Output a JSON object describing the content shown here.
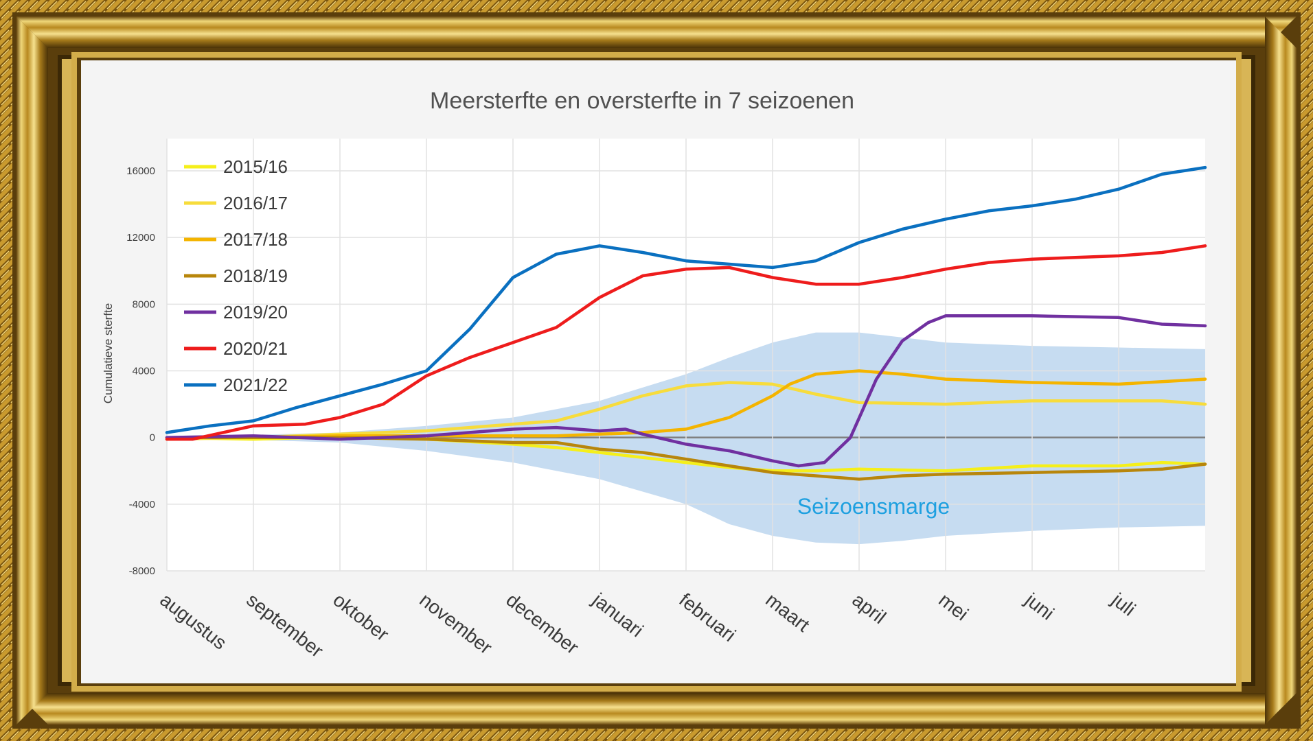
{
  "chart_data": {
    "type": "line",
    "title": "Meersterfte en oversterfte in 7 seizoenen",
    "ylabel": "Cumulatieve sterfte",
    "xlabel": "",
    "ylim": [
      -8000,
      18000
    ],
    "yticks": [
      16000,
      12000,
      8000,
      4000,
      0,
      -4000,
      -8000
    ],
    "ytick_labels": [
      "16000",
      "12000",
      "8000",
      "4000",
      "0",
      "-4000",
      "-8000"
    ],
    "months": [
      "augustus",
      "september",
      "oktober",
      "november",
      "december",
      "januari",
      "februari",
      "maart",
      "april",
      "mei",
      "juni",
      "juli"
    ],
    "x_range": [
      0,
      12
    ],
    "annotation": "Seizoensmarge",
    "band": {
      "name": "Seizoensmarge",
      "color": "#bcd6ee",
      "x": [
        0,
        1,
        2,
        3,
        4,
        5,
        6,
        6.5,
        7,
        7.5,
        8,
        8.5,
        9,
        10,
        11,
        12
      ],
      "upper": [
        100,
        150,
        300,
        700,
        1200,
        2200,
        3800,
        4800,
        5700,
        6300,
        6300,
        6000,
        5700,
        5500,
        5400,
        5300
      ],
      "lower": [
        -100,
        -150,
        -300,
        -800,
        -1500,
        -2500,
        -4000,
        -5200,
        -5900,
        -6300,
        -6400,
        -6200,
        -5900,
        -5600,
        -5400,
        -5300
      ]
    },
    "series": [
      {
        "name": "2015/16",
        "color": "#f5ef1a",
        "x": [
          0,
          1,
          2,
          3,
          4,
          4.5,
          5,
          5.5,
          6,
          6.5,
          7,
          7.5,
          8,
          9,
          10,
          11,
          11.5,
          12
        ],
        "values": [
          0,
          -100,
          50,
          -100,
          -400,
          -600,
          -900,
          -1200,
          -1500,
          -1800,
          -2000,
          -2000,
          -1900,
          -2000,
          -1700,
          -1700,
          -1500,
          -1600
        ]
      },
      {
        "name": "2016/17",
        "color": "#f7dc3c",
        "x": [
          0,
          1,
          2,
          3,
          4,
          4.5,
          5,
          5.5,
          6,
          6.5,
          7,
          7.5,
          8,
          9,
          10,
          11,
          11.5,
          12
        ],
        "values": [
          -100,
          0,
          200,
          400,
          800,
          1000,
          1700,
          2500,
          3100,
          3300,
          3200,
          2600,
          2100,
          2000,
          2200,
          2200,
          2200,
          2000
        ]
      },
      {
        "name": "2017/18",
        "color": "#f4b400",
        "x": [
          0,
          1,
          2,
          3,
          4,
          4.5,
          5,
          5.5,
          6,
          6.5,
          7,
          7.2,
          7.5,
          8,
          8.5,
          9,
          10,
          11,
          12
        ],
        "values": [
          0,
          0,
          100,
          100,
          100,
          100,
          200,
          300,
          500,
          1200,
          2500,
          3200,
          3800,
          4000,
          3800,
          3500,
          3300,
          3200,
          3500
        ]
      },
      {
        "name": "2018/19",
        "color": "#b8860b",
        "x": [
          0,
          1,
          2,
          3,
          4,
          4.5,
          5,
          5.5,
          6,
          6.5,
          7,
          7.5,
          8,
          8.5,
          9,
          10,
          11,
          11.5,
          12
        ],
        "values": [
          0,
          0,
          0,
          -100,
          -300,
          -300,
          -700,
          -900,
          -1300,
          -1700,
          -2100,
          -2300,
          -2500,
          -2300,
          -2200,
          -2100,
          -2000,
          -1900,
          -1600
        ]
      },
      {
        "name": "2019/20",
        "color": "#7030a0",
        "x": [
          0,
          1,
          2,
          3,
          4,
          4.5,
          5,
          5.3,
          5.5,
          6,
          6.5,
          7,
          7.3,
          7.6,
          7.9,
          8.2,
          8.5,
          8.8,
          9,
          10,
          11,
          11.5,
          12
        ],
        "values": [
          0,
          100,
          -100,
          100,
          500,
          600,
          400,
          500,
          200,
          -400,
          -800,
          -1400,
          -1700,
          -1500,
          0,
          3500,
          5800,
          6900,
          7300,
          7300,
          7200,
          6800,
          6700
        ]
      },
      {
        "name": "2020/21",
        "color": "#ee1c1c",
        "x": [
          0,
          0.3,
          1,
          1.6,
          2,
          2.5,
          3,
          3.5,
          4,
          4.5,
          5,
          5.5,
          6,
          6.5,
          7,
          7.5,
          8,
          8.5,
          9,
          9.5,
          10,
          10.5,
          11,
          11.5,
          12
        ],
        "values": [
          -100,
          -100,
          700,
          800,
          1200,
          2000,
          3700,
          4800,
          5700,
          6600,
          8400,
          9700,
          10100,
          10200,
          9600,
          9200,
          9200,
          9600,
          10100,
          10500,
          10700,
          10800,
          10900,
          11100,
          11500
        ]
      },
      {
        "name": "2021/22",
        "color": "#0a70c0",
        "x": [
          0,
          0.5,
          1,
          1.5,
          2,
          2.5,
          3,
          3.5,
          4,
          4.5,
          5,
          5.5,
          6,
          6.5,
          7,
          7.5,
          8,
          8.5,
          9,
          9.5,
          10,
          10.5,
          11,
          11.5,
          12
        ],
        "values": [
          300,
          700,
          1000,
          1800,
          2500,
          3200,
          4000,
          6500,
          9600,
          11000,
          11500,
          11100,
          10600,
          10400,
          10200,
          10600,
          11700,
          12500,
          13100,
          13600,
          13900,
          14300,
          14900,
          15800,
          16200
        ]
      }
    ]
  }
}
